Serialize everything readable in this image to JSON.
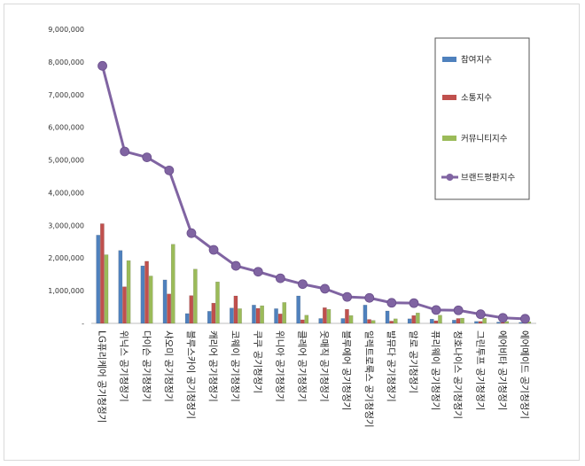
{
  "chart_data": {
    "type": "bar",
    "title": "",
    "xlabel": "",
    "ylabel": "",
    "ylim": [
      0,
      9000000
    ],
    "ytick_labels": [
      "-",
      "1,000,000",
      "2,000,000",
      "3,000,000",
      "4,000,000",
      "5,000,000",
      "6,000,000",
      "7,000,000",
      "8,000,000",
      "9,000,000"
    ],
    "legend_position": "top-right",
    "categories": [
      "LG퓨리케어 공기청정기",
      "위닉스 공기청정기",
      "다이슨 공기청정기",
      "샤오미 공기청정기",
      "블루스카이 공기청정기",
      "캐리어 공기청정기",
      "코웨이 공기청정기",
      "쿠쿠 공기청정기",
      "위니아 공기청정기",
      "클레어 공기청정기",
      "웃매직 공기청정기",
      "블루에어 공기청정기",
      "일렉트로룩스 공기청정기",
      "발뮤다 공기청정기",
      "알로 공기청정기",
      "퓨리웨이 공기청정기",
      "청호나이스 공기청정기",
      "그린투프 공기청정기",
      "에어비타 공기청정기",
      "에어메이드 공기청정기"
    ],
    "series": [
      {
        "name": "참여지수",
        "kind": "bar",
        "color": "#4f81bd",
        "values": [
          2700000,
          2230000,
          1760000,
          1330000,
          300000,
          370000,
          470000,
          560000,
          450000,
          840000,
          150000,
          150000,
          560000,
          380000,
          140000,
          130000,
          100000,
          60000,
          40000,
          30000
        ]
      },
      {
        "name": "소통지수",
        "kind": "bar",
        "color": "#c0504d",
        "values": [
          3050000,
          1120000,
          1900000,
          900000,
          850000,
          620000,
          840000,
          460000,
          290000,
          110000,
          480000,
          430000,
          120000,
          70000,
          240000,
          80000,
          150000,
          60000,
          30000,
          20000
        ]
      },
      {
        "name": "커뮤니티지수",
        "kind": "bar",
        "color": "#9bbb59",
        "values": [
          2100000,
          1920000,
          1450000,
          2420000,
          1660000,
          1270000,
          450000,
          540000,
          640000,
          250000,
          430000,
          240000,
          90000,
          140000,
          320000,
          250000,
          160000,
          160000,
          60000,
          50000
        ]
      },
      {
        "name": "브랜드평판지수",
        "kind": "line",
        "color": "#8064a2",
        "values": [
          7880000,
          5260000,
          5080000,
          4680000,
          2760000,
          2250000,
          1760000,
          1580000,
          1380000,
          1200000,
          1060000,
          810000,
          780000,
          630000,
          620000,
          410000,
          400000,
          280000,
          170000,
          140000
        ]
      }
    ]
  }
}
